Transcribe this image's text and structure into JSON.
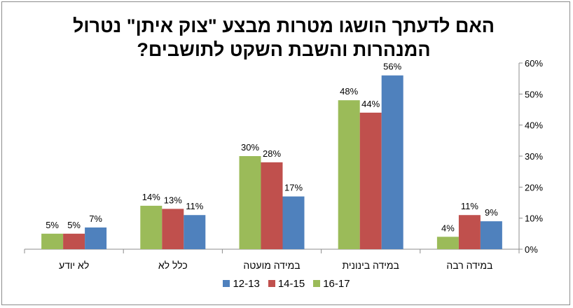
{
  "chart_data": {
    "type": "bar",
    "title_line1": "האם לדעתך הושגו מטרות מבצע \"צוק איתן\" נטרול",
    "title_line2": "המנהרות והשבת השקט לתושבים?",
    "categories": [
      "לא יודע",
      "כלל לא",
      "במידה מועטה",
      "במידה בינונית",
      "במידה רבה"
    ],
    "series": [
      {
        "name": "16-17",
        "color": "#9bbb59",
        "values": [
          5,
          14,
          30,
          48,
          4
        ]
      },
      {
        "name": "14-15",
        "color": "#c0504d",
        "values": [
          5,
          13,
          28,
          44,
          11
        ]
      },
      {
        "name": "12-13",
        "color": "#4f81bd",
        "values": [
          7,
          11,
          17,
          56,
          9
        ]
      }
    ],
    "y_ticks": [
      "0%",
      "10%",
      "20%",
      "30%",
      "40%",
      "50%",
      "60%"
    ],
    "ylim": [
      0,
      60
    ],
    "y_axis_side": "right",
    "legend_order": [
      "12-13",
      "14-15",
      "16-17"
    ],
    "legend_position": "bottom",
    "value_suffix": "%",
    "gridlines": false
  }
}
